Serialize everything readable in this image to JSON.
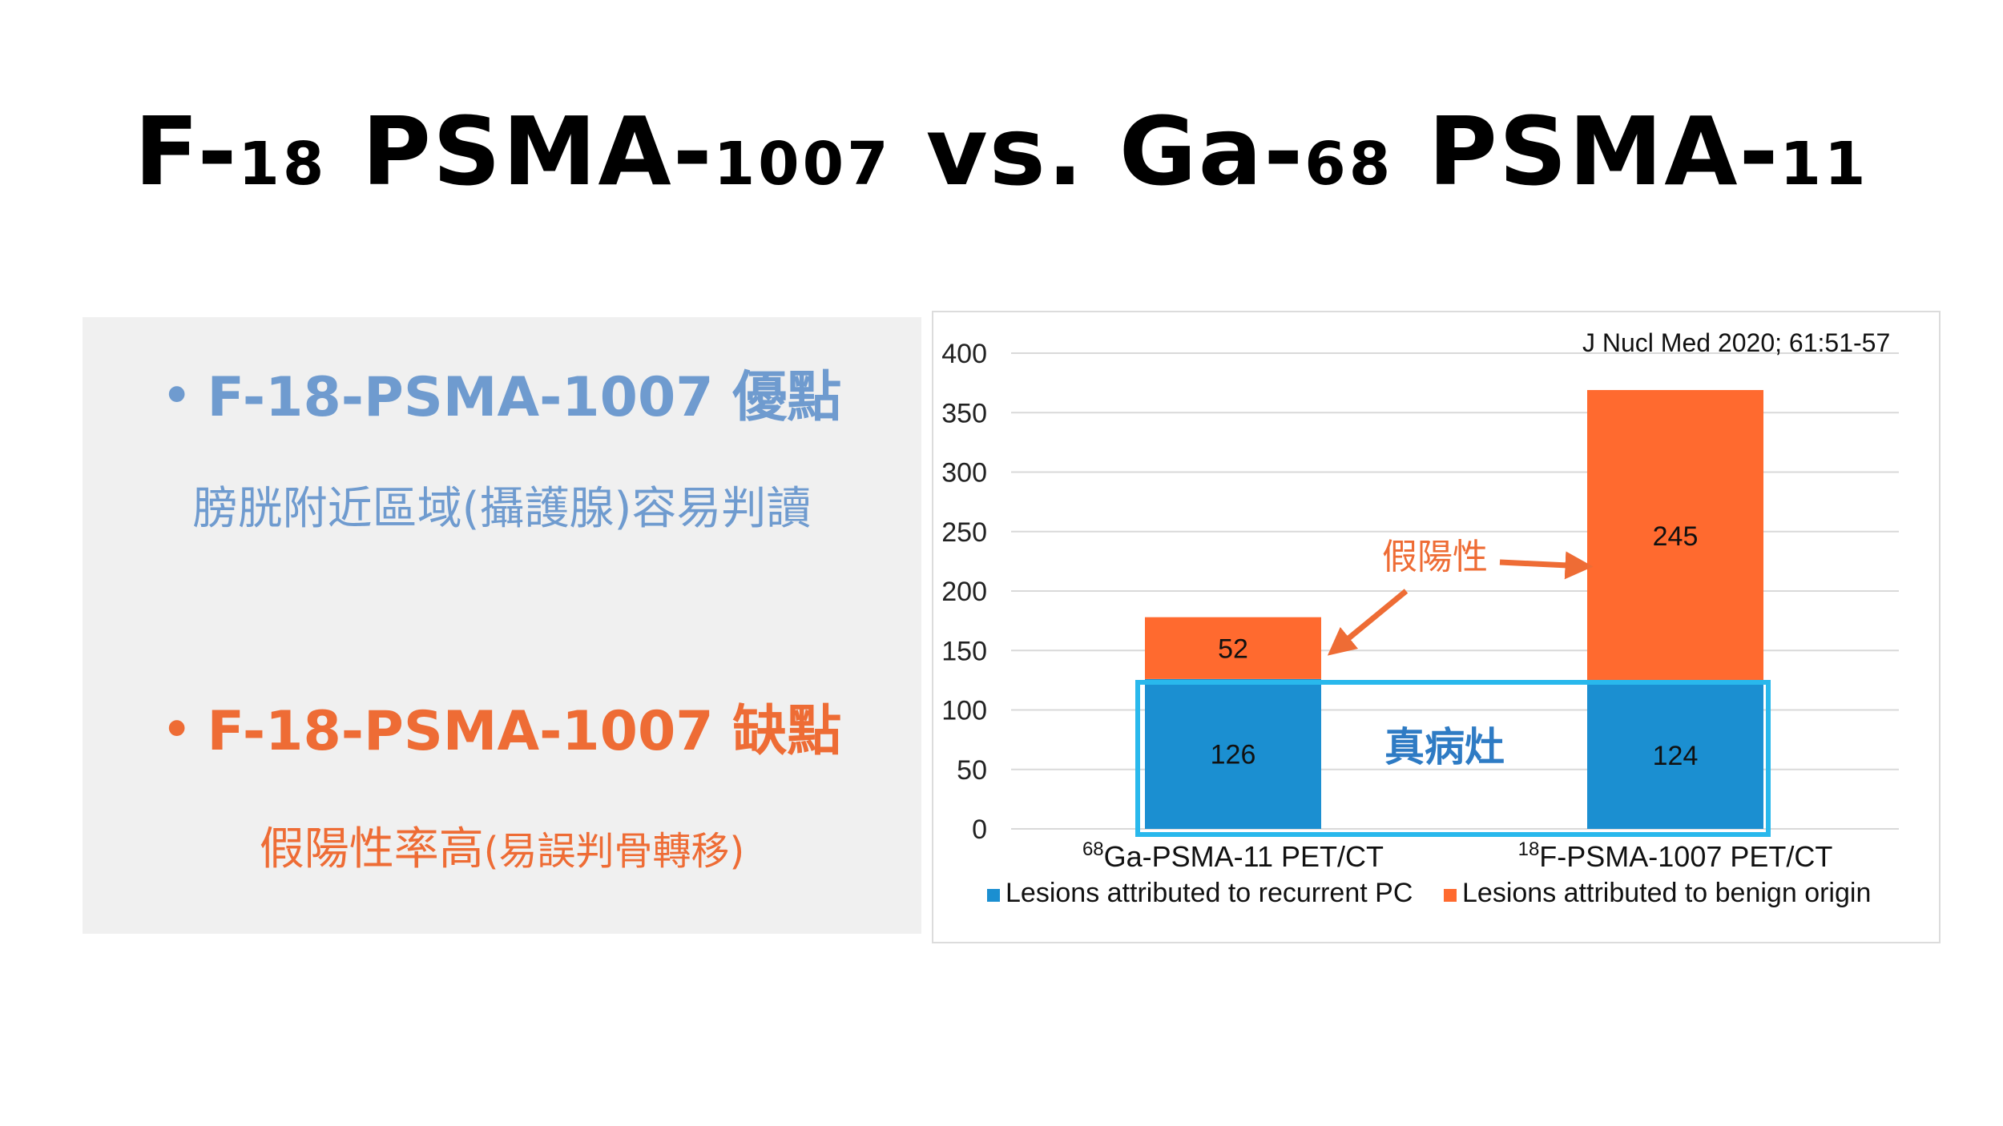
{
  "title": {
    "parts": [
      {
        "text": "F-",
        "small": false
      },
      {
        "text": "18",
        "small": true
      },
      {
        "text": " PSMA-",
        "small": false
      },
      {
        "text": "1007",
        "small": true
      },
      {
        "text": " vs. Ga-",
        "small": false
      },
      {
        "text": "68",
        "small": true
      },
      {
        "text": " PSMA-",
        "small": false
      },
      {
        "text": "11",
        "small": true
      }
    ]
  },
  "left_panel": {
    "bullet_dot": "•",
    "pro_heading": "F-18-PSMA-1007 優點",
    "pro_text": "膀胱附近區域(攝護腺)容易判讀",
    "con_heading": "F-18-PSMA-1007 缺點",
    "con_text_main": "假陽性率高",
    "con_text_paren": "(易誤判骨轉移)"
  },
  "colors": {
    "pro": "#6f9bcf",
    "con": "#ee6c35",
    "blue_bar": "#1b8fd1",
    "orange_bar": "#ff6a2f",
    "highlight_box": "#29b8ec",
    "annotation": "#ee6c35",
    "true_lesion_label": "#2e7bc4"
  },
  "chart_data": {
    "type": "bar",
    "stacked": true,
    "citation": "J Nucl Med 2020; 61:51-57",
    "categories": [
      {
        "isotope": "68",
        "label": "Ga-PSMA-11 PET/CT"
      },
      {
        "isotope": "18",
        "label": "F-PSMA-1007 PET/CT"
      }
    ],
    "series": [
      {
        "name": "Lesions attributed to recurrent PC",
        "values": [
          126,
          124
        ]
      },
      {
        "name": "Lesions attributed to benign origin",
        "values": [
          52,
          245
        ]
      }
    ],
    "ylim": [
      0,
      400
    ],
    "yticks": [
      0,
      50,
      100,
      150,
      200,
      250,
      300,
      350,
      400
    ],
    "grid": true,
    "legend_position": "bottom",
    "annotations": {
      "false_positive": "假陽性",
      "true_lesion": "真病灶"
    }
  }
}
